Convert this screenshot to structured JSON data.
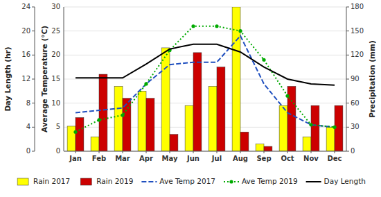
{
  "chart_data": {
    "type": "bar",
    "categories": [
      "Jan",
      "Feb",
      "Mar",
      "Apr",
      "May",
      "Jun",
      "Jul",
      "Aug",
      "Sep",
      "Oct",
      "Nov",
      "Dec"
    ],
    "series": [
      {
        "name": "Rain 2017",
        "type": "bar",
        "color": "#FFFF00",
        "values": [
          5.2,
          3.0,
          13.5,
          12.5,
          21.5,
          9.5,
          13.5,
          30.0,
          1.5,
          9.5,
          3.0,
          5.0
        ]
      },
      {
        "name": "Rain 2019",
        "type": "bar",
        "color": "#CC0000",
        "values": [
          7.0,
          16.0,
          11.0,
          11.0,
          3.5,
          20.5,
          17.5,
          4.0,
          1.0,
          13.5,
          9.5,
          9.5
        ]
      },
      {
        "name": "Ave Temp 2017",
        "type": "line",
        "color": "#1F4FBF",
        "line_style": "dashed",
        "values": [
          8.0,
          8.5,
          9.0,
          14.0,
          18.0,
          18.5,
          18.5,
          24.0,
          14.0,
          8.0,
          5.5,
          5.0
        ]
      },
      {
        "name": "Ave Temp 2019",
        "type": "line",
        "color": "#00AA00",
        "line_style": "dotted",
        "marker": "circle",
        "values": [
          4.0,
          6.5,
          7.5,
          14.0,
          21.0,
          26.0,
          26.0,
          25.0,
          19.0,
          11.5,
          5.5,
          5.0
        ]
      },
      {
        "name": "Day Length",
        "type": "line",
        "color": "#000000",
        "line_style": "solid",
        "axis": "y3",
        "values": [
          12.2,
          12.2,
          12.2,
          14.5,
          17.0,
          17.8,
          17.8,
          16.5,
          14.0,
          12.0,
          11.2,
          11.0
        ]
      }
    ],
    "ylabel": "Average Temperature (°C)",
    "ylim": [
      0,
      30
    ],
    "yticks": [
      0,
      5,
      10,
      15,
      20,
      25,
      30
    ],
    "y2label": "Precipitation (mm)",
    "y2lim": [
      0,
      180
    ],
    "y2ticks": [
      0,
      30,
      60,
      90,
      120,
      150,
      180
    ],
    "y3label": "Day Length (hr)",
    "y3lim": [
      0,
      24
    ],
    "y3ticks": [
      0,
      4,
      8,
      12,
      16,
      20,
      24
    ],
    "grid": true,
    "legend": "bottom"
  }
}
